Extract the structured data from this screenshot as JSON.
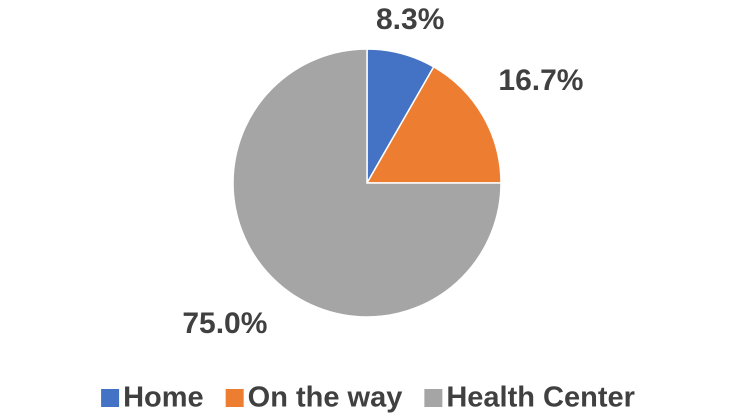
{
  "chart_data": {
    "type": "pie",
    "categories": [
      "Home",
      "On the way",
      "Health Center"
    ],
    "values": [
      8.3,
      16.7,
      75.0
    ],
    "value_labels": [
      "8.3%",
      "16.7%",
      "75.0%"
    ],
    "colors": [
      "#4472c4",
      "#ed7d31",
      "#a5a5a5"
    ],
    "legend": "bottom"
  }
}
